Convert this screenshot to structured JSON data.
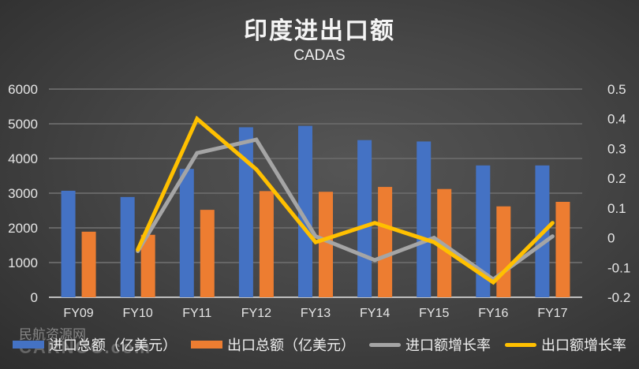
{
  "header": {
    "title": "印度进出口额",
    "subtitle": "CADAS"
  },
  "watermark": {
    "line1": "民航资源网",
    "line2": "CARNOC.com"
  },
  "colors": {
    "import_bar": "#4472c4",
    "export_bar": "#ed7d31",
    "import_growth": "#a5a5a5",
    "export_growth": "#ffc000",
    "gridline": "#666666",
    "axis": "#bfbfbf"
  },
  "legend": [
    {
      "label": "进口总额（亿美元）",
      "type": "bar",
      "color": "#4472c4"
    },
    {
      "label": "出口总额（亿美元）",
      "type": "bar",
      "color": "#ed7d31"
    },
    {
      "label": "进口额增长率",
      "type": "line",
      "color": "#a5a5a5"
    },
    {
      "label": "出口额增长率",
      "type": "line",
      "color": "#ffc000"
    }
  ],
  "chart_data": {
    "type": "bar",
    "title": "印度进出口额",
    "subtitle": "CADAS",
    "categories": [
      "FY09",
      "FY10",
      "FY11",
      "FY12",
      "FY13",
      "FY14",
      "FY15",
      "FY16",
      "FY17"
    ],
    "series": [
      {
        "name": "进口总额（亿美元）",
        "type": "bar",
        "axis": "left",
        "values": [
          3070,
          2890,
          3700,
          4900,
          4940,
          4530,
          4490,
          3800,
          3800
        ]
      },
      {
        "name": "出口总额（亿美元）",
        "type": "bar",
        "axis": "left",
        "values": [
          1890,
          1800,
          2520,
          3060,
          3040,
          3180,
          3120,
          2620,
          2750
        ]
      },
      {
        "name": "进口额增长率",
        "type": "line",
        "axis": "right",
        "values": [
          null,
          -0.045,
          0.285,
          0.33,
          0.005,
          -0.075,
          0.0,
          -0.14,
          0.005
        ]
      },
      {
        "name": "出口额增长率",
        "type": "line",
        "axis": "right",
        "values": [
          null,
          -0.04,
          0.4,
          0.23,
          -0.015,
          0.05,
          -0.015,
          -0.15,
          0.05
        ]
      }
    ],
    "left_axis": {
      "ticks": [
        "0",
        "1000",
        "2000",
        "3000",
        "4000",
        "5000",
        "6000"
      ],
      "ylim": [
        0,
        6000
      ]
    },
    "right_axis": {
      "ticks": [
        "-0.2",
        "-0.1",
        "0",
        "0.1",
        "0.2",
        "0.3",
        "0.4",
        "0.5"
      ],
      "ylim": [
        -0.2,
        0.5
      ]
    },
    "xlabel": "",
    "ylabel": "",
    "grid": true,
    "legend_position": "bottom"
  }
}
